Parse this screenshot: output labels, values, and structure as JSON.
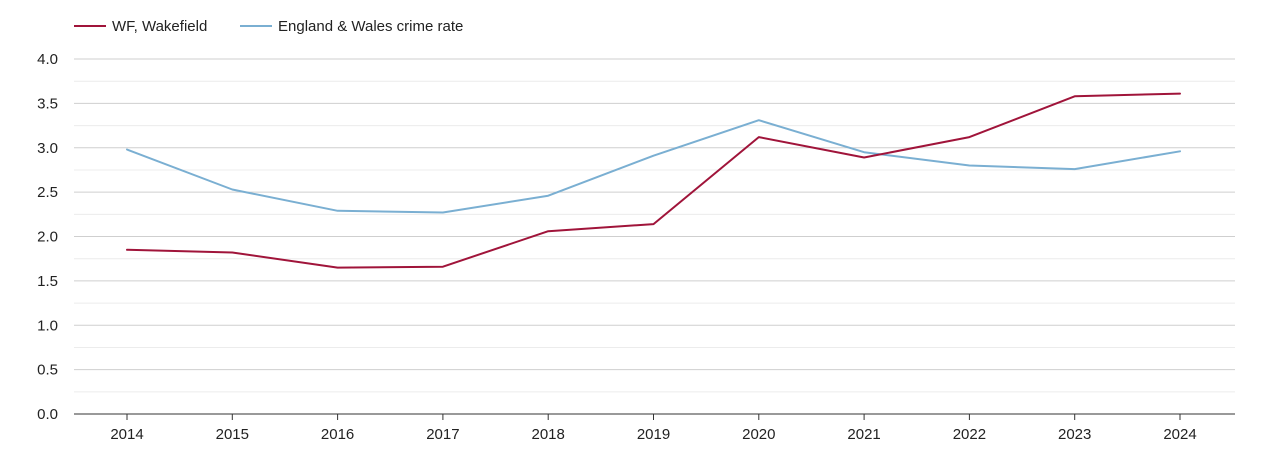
{
  "chart_data": {
    "type": "line",
    "title": "",
    "xlabel": "",
    "ylabel": "",
    "categories": [
      "2014",
      "2015",
      "2016",
      "2017",
      "2018",
      "2019",
      "2020",
      "2021",
      "2022",
      "2023",
      "2024"
    ],
    "series": [
      {
        "name": "WF, Wakefield",
        "color": "#a0143a",
        "values": [
          1.85,
          1.82,
          1.65,
          1.66,
          2.06,
          2.14,
          3.12,
          2.89,
          3.12,
          3.58,
          3.61
        ]
      },
      {
        "name": "England & Wales crime rate",
        "color": "#7aafd2",
        "values": [
          2.98,
          2.53,
          2.29,
          2.27,
          2.46,
          2.91,
          3.31,
          2.95,
          2.8,
          2.76,
          2.96
        ]
      }
    ],
    "y_ticks": [
      "0.0",
      "0.5",
      "1.0",
      "1.5",
      "2.0",
      "2.5",
      "3.0",
      "3.5",
      "4.0"
    ],
    "ylim": [
      0,
      4
    ],
    "grid": true,
    "legend_position": "top-left"
  }
}
